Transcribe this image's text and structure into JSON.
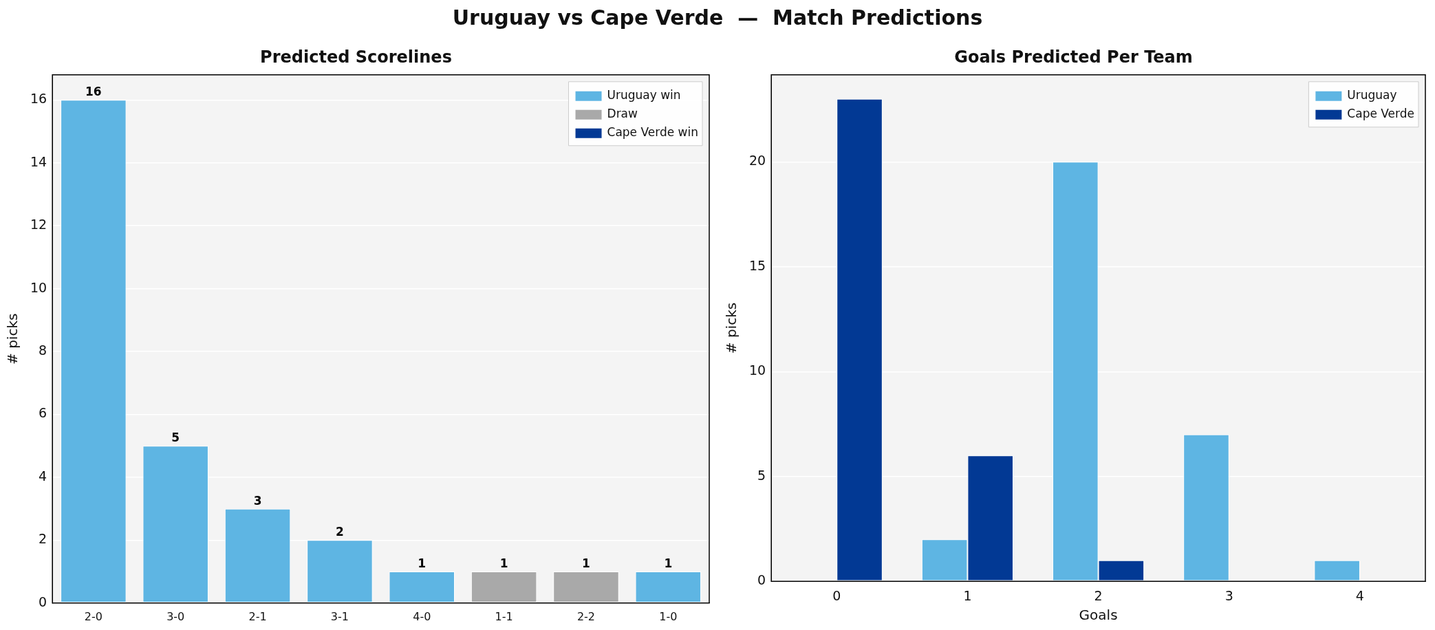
{
  "chart_data": [
    {
      "type": "bar",
      "title": "Predicted Scorelines",
      "annotations": [
        "Uruguay vs Cape Verde  —  Match Predictions"
      ],
      "ylabel": "# picks",
      "categories": [
        "2-0",
        "3-0",
        "2-1",
        "3-1",
        "4-0",
        "1-1",
        "2-2",
        "1-0"
      ],
      "stacked": true,
      "series": [
        {
          "name": "Uruguay win",
          "color": "#5eb5e3",
          "values": [
            16,
            5,
            3,
            2,
            1,
            null,
            null,
            1
          ]
        },
        {
          "name": "Draw",
          "color": "#a9a9a9",
          "values": [
            null,
            null,
            null,
            null,
            null,
            1,
            1,
            null
          ]
        },
        {
          "name": "Cape Verde win",
          "color": "#023994",
          "values": [
            null,
            null,
            null,
            null,
            null,
            null,
            null,
            null
          ]
        }
      ],
      "ylim": [
        0,
        16.8
      ],
      "yticks": [
        0,
        2,
        4,
        6,
        8,
        10,
        12,
        14,
        16
      ],
      "grid": "y",
      "legend": "top right",
      "data_labels": true
    },
    {
      "type": "bar",
      "title": "Goals Predicted Per Team",
      "xlabel": "Goals",
      "ylabel": "# picks",
      "categories": [
        "0",
        "1",
        "2",
        "3",
        "4"
      ],
      "series": [
        {
          "name": "Uruguay",
          "color": "#5eb5e3",
          "values": [
            0,
            2,
            20,
            7,
            1
          ]
        },
        {
          "name": "Cape Verde",
          "color": "#023994",
          "values": [
            23,
            6,
            1,
            0,
            0
          ]
        }
      ],
      "ylim": [
        0,
        24.15
      ],
      "yticks": [
        0,
        5,
        10,
        15,
        20
      ],
      "grid": "y",
      "legend": "top right"
    }
  ]
}
